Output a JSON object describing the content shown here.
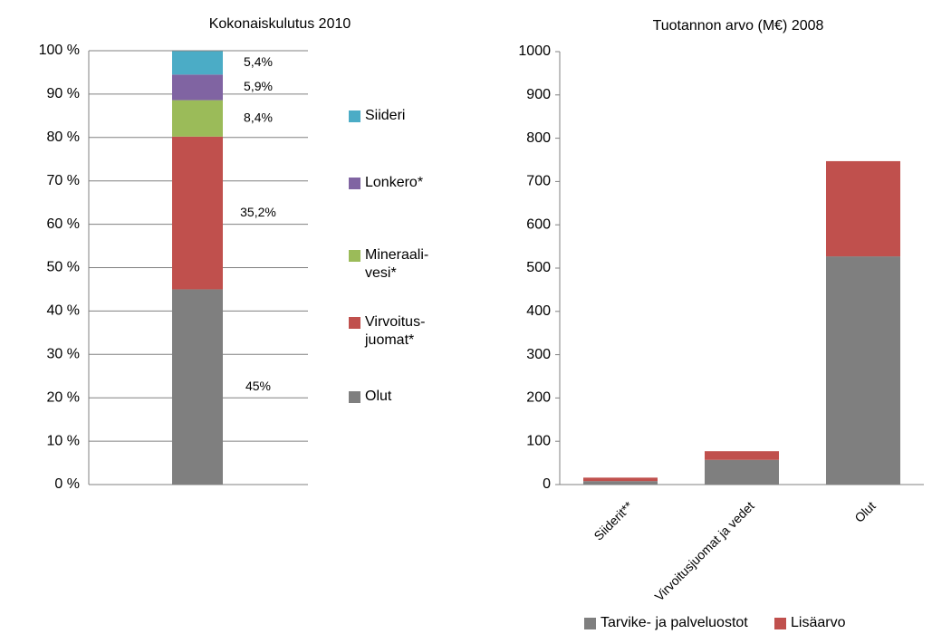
{
  "chart_data": [
    {
      "type": "bar",
      "stacked": true,
      "title": "Kokonaiskulutus  2010",
      "categories": [
        null
      ],
      "series": [
        {
          "name": "Olut",
          "color": "#7f7f7f",
          "values": [
            45
          ],
          "value_labels": [
            "45%"
          ]
        },
        {
          "name": "Virvoitus- juomat*",
          "color": "#c0504d",
          "values": [
            35.2
          ],
          "value_labels": [
            "35,2%"
          ]
        },
        {
          "name": "Mineraali- vesi*",
          "color": "#9bbb59",
          "values": [
            8.4
          ],
          "value_labels": [
            "8,4%"
          ]
        },
        {
          "name": "Lonkero*",
          "color": "#8064a2",
          "values": [
            5.9
          ],
          "value_labels": [
            "5,9%"
          ]
        },
        {
          "name": "Siideri",
          "color": "#4bacc6",
          "values": [
            5.4
          ],
          "value_labels": [
            "5,4%"
          ]
        }
      ],
      "ylim": [
        0,
        100
      ],
      "yticks": [
        {
          "value": 0,
          "label": "0 %"
        },
        {
          "value": 10,
          "label": "10 %"
        },
        {
          "value": 20,
          "label": "20 %"
        },
        {
          "value": 30,
          "label": "30 %"
        },
        {
          "value": 40,
          "label": "40 %"
        },
        {
          "value": 50,
          "label": "50 %"
        },
        {
          "value": 60,
          "label": "60 %"
        },
        {
          "value": 70,
          "label": "70 %"
        },
        {
          "value": 80,
          "label": "80 %"
        },
        {
          "value": 90,
          "label": "90 %"
        },
        {
          "value": 100,
          "label": "100 %"
        }
      ],
      "grid": true,
      "legend": "right"
    },
    {
      "type": "bar",
      "stacked": true,
      "title": "Tuotannon arvo (M€) 2008",
      "categories": [
        "Siiderit**",
        "Virvoitusjuomat ja vedet",
        "Olut"
      ],
      "series": [
        {
          "name": "Tarvike- ja palveluostot",
          "color": "#7f7f7f",
          "values": [
            8,
            57,
            527
          ]
        },
        {
          "name": "Lisäarvo",
          "color": "#c0504d",
          "values": [
            8,
            20,
            220
          ]
        }
      ],
      "ylim": [
        0,
        1000
      ],
      "yticks": [
        0,
        100,
        200,
        300,
        400,
        500,
        600,
        700,
        800,
        900,
        1000
      ],
      "grid": false,
      "legend": "bottom"
    }
  ]
}
